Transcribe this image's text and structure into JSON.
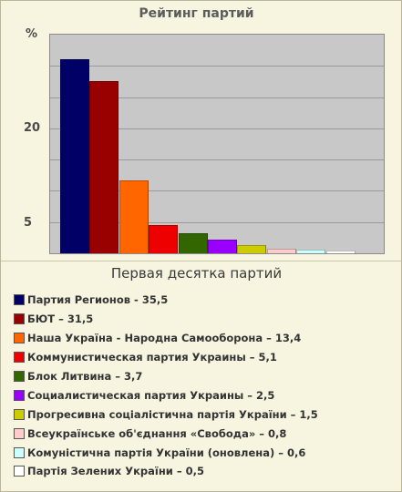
{
  "chart_data": {
    "type": "bar",
    "title": "Рейтинг партий",
    "ylabel": "%",
    "ylim": [
      0,
      40
    ],
    "yticks": [
      "5",
      "20"
    ],
    "grid": true,
    "legend_title": "Первая десятка партий",
    "legend_position": "bottom",
    "bars": [
      {
        "label": "Партия Регионов - 35,5",
        "value": 35.5,
        "color": "#000066"
      },
      {
        "label": "БЮТ –  31,5",
        "value": 31.5,
        "color": "#990000"
      },
      {
        "label": "Наша Україна - Народна Самооборона – 13,4",
        "value": 13.4,
        "color": "#ff6600"
      },
      {
        "label": "Коммунистическая партия Украины – 5,1",
        "value": 5.1,
        "color": "#ee0000"
      },
      {
        "label": "Блок Литвина – 3,7",
        "value": 3.7,
        "color": "#336600"
      },
      {
        "label": "Социалистическая партия Украины – 2,5",
        "value": 2.5,
        "color": "#9900ff"
      },
      {
        "label": "Прогресивна соціалістична партія України – 1,5",
        "value": 1.5,
        "color": "#cccc00"
      },
      {
        "label": "Всеукраїнське об'єднання «Свобода» – 0,8",
        "value": 0.8,
        "color": "#ffcccc"
      },
      {
        "label": "Комуністична партія України (оновлена) – 0,6",
        "value": 0.6,
        "color": "#ccffff"
      },
      {
        "label": "Партія Зелених України – 0,5",
        "value": 0.5,
        "color": "#ffffff"
      }
    ]
  }
}
